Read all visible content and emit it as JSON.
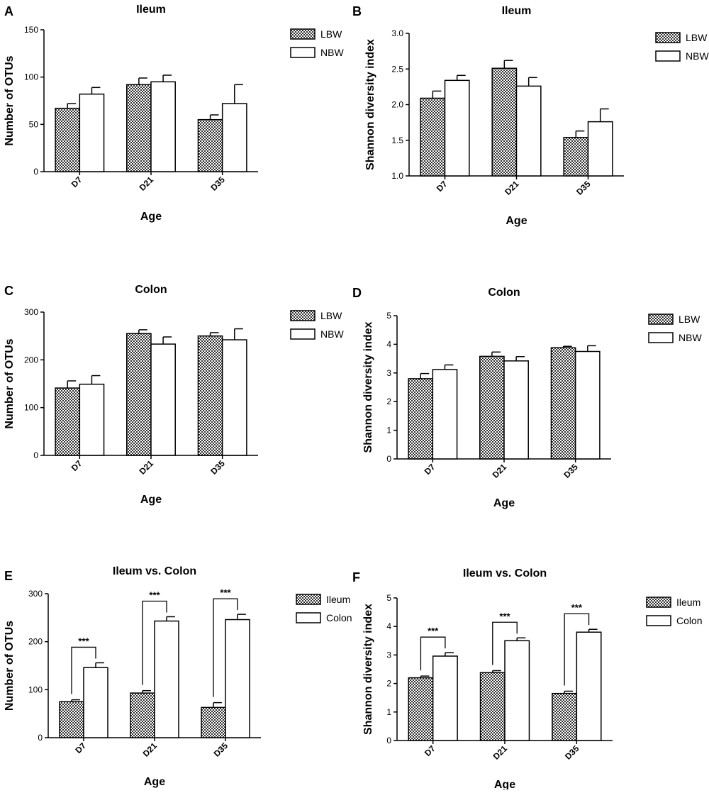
{
  "colors": {
    "bar_dark": "#5a5a5a",
    "bar_light": "#ffffff",
    "stroke": "#000000"
  },
  "chart_data": [
    {
      "panel": "A",
      "type": "bar",
      "title": "Ileum",
      "xlabel": "Age",
      "ylabel": "Number of OTUs",
      "ylim": [
        0,
        150
      ],
      "yticks": [
        0,
        50,
        100,
        150
      ],
      "categories": [
        "D7",
        "D21",
        "D35"
      ],
      "series": [
        {
          "name": "LBW",
          "values": [
            67,
            92,
            55
          ],
          "errors": [
            5,
            7,
            5
          ]
        },
        {
          "name": "NBW",
          "values": [
            82,
            95,
            72
          ],
          "errors": [
            7,
            7,
            20
          ]
        }
      ]
    },
    {
      "panel": "B",
      "type": "bar",
      "title": "Ileum",
      "xlabel": "Age",
      "ylabel": "Shannon diversity index",
      "ylim": [
        1.0,
        3.0
      ],
      "yticks": [
        "1.0",
        "1.5",
        "2.0",
        "2.5",
        "3.0"
      ],
      "categories": [
        "D7",
        "D21",
        "D35"
      ],
      "series": [
        {
          "name": "LBW",
          "values": [
            2.09,
            2.51,
            1.54
          ],
          "errors": [
            0.1,
            0.11,
            0.09
          ]
        },
        {
          "name": "NBW",
          "values": [
            2.34,
            2.26,
            1.76
          ],
          "errors": [
            0.07,
            0.12,
            0.18
          ]
        }
      ]
    },
    {
      "panel": "C",
      "type": "bar",
      "title": "Colon",
      "xlabel": "Age",
      "ylabel": "Number of OTUs",
      "ylim": [
        0,
        300
      ],
      "yticks": [
        0,
        100,
        200,
        300
      ],
      "categories": [
        "D7",
        "D21",
        "D35"
      ],
      "series": [
        {
          "name": "LBW",
          "values": [
            141,
            255,
            250
          ],
          "errors": [
            15,
            8,
            7
          ]
        },
        {
          "name": "NBW",
          "values": [
            149,
            233,
            242
          ],
          "errors": [
            18,
            15,
            23
          ]
        }
      ]
    },
    {
      "panel": "D",
      "type": "bar",
      "title": "Colon",
      "xlabel": "Age",
      "ylabel": "Shannon diversity index",
      "ylim": [
        0,
        5
      ],
      "yticks": [
        0,
        1,
        2,
        3,
        4,
        5
      ],
      "categories": [
        "D7",
        "D21",
        "D35"
      ],
      "series": [
        {
          "name": "LBW",
          "values": [
            2.8,
            3.58,
            3.88
          ],
          "errors": [
            0.18,
            0.15,
            0.05
          ]
        },
        {
          "name": "NBW",
          "values": [
            3.12,
            3.42,
            3.75
          ],
          "errors": [
            0.16,
            0.15,
            0.2
          ]
        }
      ]
    },
    {
      "panel": "E",
      "type": "bar",
      "title": "Ileum vs. Colon",
      "xlabel": "Age",
      "ylabel": "Number of OTUs",
      "ylim": [
        0,
        300
      ],
      "yticks": [
        0,
        100,
        200,
        300
      ],
      "categories": [
        "D7",
        "D21",
        "D35"
      ],
      "series": [
        {
          "name": "Ileum",
          "values": [
            75,
            93,
            63
          ],
          "errors": [
            4,
            5,
            10
          ]
        },
        {
          "name": "Colon",
          "values": [
            146,
            243,
            246
          ],
          "errors": [
            10,
            9,
            11
          ]
        }
      ],
      "significance": [
        "***",
        "***",
        "***"
      ]
    },
    {
      "panel": "F",
      "type": "bar",
      "title": "Ileum vs. Colon",
      "xlabel": "Age",
      "ylabel": "Shannon diversity index",
      "ylim": [
        0,
        5
      ],
      "yticks": [
        0,
        1,
        2,
        3,
        4,
        5
      ],
      "categories": [
        "D7",
        "D21",
        "D35"
      ],
      "series": [
        {
          "name": "Ileum",
          "values": [
            2.2,
            2.38,
            1.65
          ],
          "errors": [
            0.06,
            0.07,
            0.08
          ]
        },
        {
          "name": "Colon",
          "values": [
            2.96,
            3.5,
            3.8
          ],
          "errors": [
            0.12,
            0.1,
            0.1
          ]
        }
      ],
      "significance": [
        "***",
        "***",
        "***"
      ]
    }
  ]
}
